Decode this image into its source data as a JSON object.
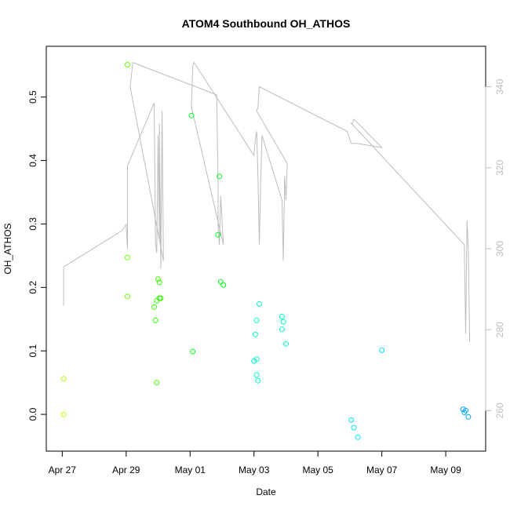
{
  "chart_data": {
    "type": "scatter",
    "title": "ATOM4 Southbound OH_ATHOS",
    "xlabel": "Date",
    "ylabel": "OH_ATHOS",
    "x_ticks": [
      "Apr 27",
      "Apr 29",
      "May 01",
      "May 03",
      "May 05",
      "May 07",
      "May 09"
    ],
    "y_ticks": [
      "0.0",
      "0.1",
      "0.2",
      "0.3",
      "0.4",
      "0.5"
    ],
    "y2_ticks": [
      "260",
      "280",
      "300",
      "320",
      "340"
    ],
    "xlim": [
      "2016-04-26 12:00",
      "2016-05-10 06:00"
    ],
    "ylim": [
      -0.058,
      0.58
    ],
    "y2lim": [
      250,
      350
    ],
    "points": {
      "name": "OH_ATHOS",
      "x": [
        "2016-04-27 01:00",
        "2016-04-27 01:00",
        "2016-04-29 01:00",
        "2016-04-29 01:00",
        "2016-04-29 01:00",
        "2016-04-29 21:00",
        "2016-04-29 22:00",
        "2016-04-29 23:00",
        "2016-04-30 00:00",
        "2016-04-30 01:00",
        "2016-04-30 01:00",
        "2016-04-30 02:00",
        "2016-04-29 23:00",
        "2016-05-01 01:00",
        "2016-05-01 02:00",
        "2016-05-01 21:00",
        "2016-05-01 22:00",
        "2016-05-01 23:00",
        "2016-05-02 01:00",
        "2016-05-03 00:00",
        "2016-05-03 01:00",
        "2016-05-03 02:00",
        "2016-05-03 02:00",
        "2016-05-03 02:00",
        "2016-05-03 03:00",
        "2016-05-03 04:00",
        "2016-05-03 21:00",
        "2016-05-03 21:00",
        "2016-05-03 22:00",
        "2016-05-04 00:00",
        "2016-05-06 01:00",
        "2016-05-06 03:00",
        "2016-05-06 06:00",
        "2016-05-07 00:00",
        "2016-05-09 13:00",
        "2016-05-09 14:00",
        "2016-05-09 15:00",
        "2016-05-09 17:00"
      ],
      "y": [
        0.056,
        0.0,
        0.551,
        0.247,
        0.186,
        0.169,
        0.148,
        0.179,
        0.213,
        0.208,
        0.183,
        0.183,
        0.05,
        0.471,
        0.099,
        0.283,
        0.375,
        0.209,
        0.204,
        0.084,
        0.126,
        0.148,
        0.087,
        0.062,
        0.053,
        0.174,
        0.154,
        0.134,
        0.146,
        0.111,
        -0.009,
        -0.021,
        -0.036,
        0.101,
        0.008,
        0.003,
        0.006,
        -0.004
      ],
      "colors": [
        "#b3ff00",
        "#b3ff00",
        "#66ff00",
        "#66ff00",
        "#66ff00",
        "#33ff00",
        "#33ff00",
        "#33ff00",
        "#33ff00",
        "#33ff00",
        "#33ff00",
        "#33ff00",
        "#33ff00",
        "#00ff1a",
        "#00ff1a",
        "#00ff1a",
        "#00ff1a",
        "#00ff1a",
        "#00ff1a",
        "#00ffcc",
        "#00ffcc",
        "#00ffcc",
        "#00ffcc",
        "#00ffcc",
        "#00ffcc",
        "#00ffcc",
        "#00ffcc",
        "#00ffcc",
        "#00ffcc",
        "#00ffcc",
        "#00e5ff",
        "#00e5ff",
        "#00e5ff",
        "#00e5ff",
        "#00a8ff",
        "#00a8ff",
        "#00a8ff",
        "#00a8ff"
      ]
    },
    "line_series": {
      "name": "secondary",
      "color": "#bdbdbd",
      "x": [
        "2016-04-27 01:00",
        "2016-04-27 01:00",
        "2016-04-28 21:00",
        "2016-04-29 00:00",
        "2016-04-29 01:00",
        "2016-04-29 01:00",
        "2016-04-29 21:00",
        "2016-04-29 22:00",
        "2016-04-29 23:00",
        "2016-04-30 00:00",
        "2016-04-30 01:00",
        "2016-04-30 01:00",
        "2016-04-30 02:00",
        "2016-04-30 03:00",
        "2016-04-30 04:00",
        "2016-04-29 03:00",
        "2016-04-29 04:00",
        "2016-04-29 05:00",
        "2016-05-01 20:00",
        "2016-05-01 21:00",
        "2016-05-01 21:00",
        "2016-05-01 22:00",
        "2016-05-01 23:00",
        "2016-05-02 01:00",
        "2016-05-01 01:00",
        "2016-05-01 02:00",
        "2016-05-01 03:00",
        "2016-05-03 00:00",
        "2016-05-03 01:00",
        "2016-05-03 02:00",
        "2016-05-03 03:00",
        "2016-05-03 04:00",
        "2016-05-03 05:00",
        "2016-05-03 06:00",
        "2016-05-03 21:00",
        "2016-05-03 22:00",
        "2016-05-03 23:00",
        "2016-05-04 00:00",
        "2016-05-04 01:00",
        "2016-05-03 02:00",
        "2016-05-03 03:00",
        "2016-05-03 04:00",
        "2016-05-05 22:00",
        "2016-05-06 00:00",
        "2016-05-06 01:00",
        "2016-05-06 03:00",
        "2016-05-06 05:00",
        "2016-05-07 00:00",
        "2016-05-06 03:00",
        "2016-05-06 02:00",
        "2016-05-06 01:00",
        "2016-05-09 14:00",
        "2016-05-09 15:00",
        "2016-05-09 16:00",
        "2016-05-09 17:00",
        "2016-05-09 18:00"
      ],
      "y": [
        286,
        295.5,
        304.5,
        306,
        300,
        320.5,
        336,
        301.5,
        299,
        328,
        302,
        331,
        295,
        334,
        297,
        340,
        343,
        346,
        338,
        316,
        306,
        301,
        313,
        301,
        335,
        345,
        346,
        323,
        327,
        329,
        318,
        301,
        316,
        328,
        312,
        297,
        318,
        312,
        321,
        334,
        335,
        340,
        329,
        327,
        326,
        326,
        326,
        325,
        332,
        331,
        331,
        301,
        279,
        307,
        300,
        277
      ]
    }
  }
}
